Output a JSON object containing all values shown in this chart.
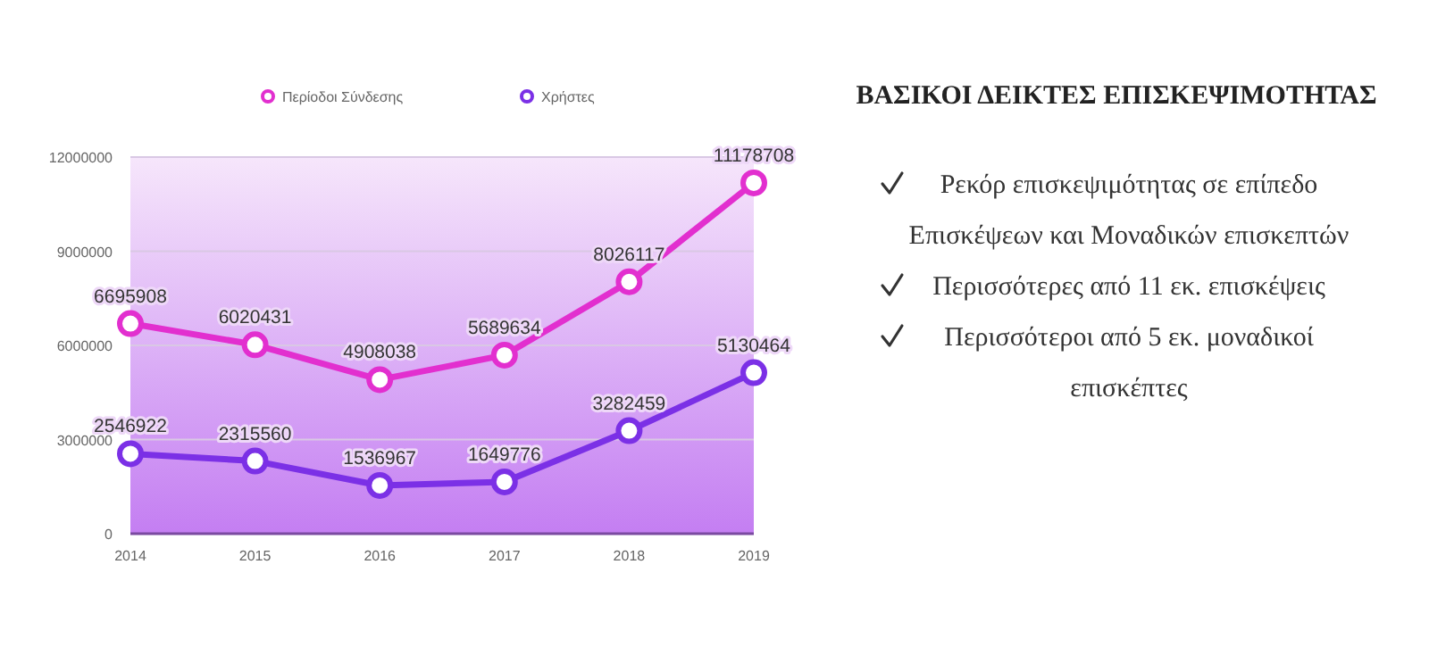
{
  "chart_data": {
    "type": "line",
    "title": "ΒΑΣΙΚΟΙ ΔΕΙΚΤΕΣ ΕΠΙΣΚΕΨΙΜΟΤΗΤΑΣ",
    "categories": [
      "2014",
      "2015",
      "2016",
      "2017",
      "2018",
      "2019"
    ],
    "series": [
      {
        "name": "Περίοδοι Σύνδεσης",
        "color": "#e22fcf",
        "values": [
          6695908,
          6020431,
          4908038,
          5689634,
          8026117,
          11178708
        ]
      },
      {
        "name": "Χρήστες",
        "color": "#7b30e6",
        "values": [
          2546922,
          2315560,
          1536967,
          1649776,
          3282459,
          5130464
        ]
      }
    ],
    "ylim": [
      0,
      12000000
    ],
    "yticks": [
      0,
      3000000,
      6000000,
      9000000,
      12000000
    ],
    "grid": "y",
    "legend": "top",
    "marker": "circle",
    "line_style": "solid",
    "data_labels": true,
    "annotations": [
      "Ρεκόρ επισκεψιμότητας σε επίπεδο Επισκέψεων και Μοναδικών επισκεπτών",
      "Περισσότερες από 11 εκ. επισκέψεις",
      "Περισσότεροι από 5 εκ. μοναδικοί επισκέπτες"
    ]
  }
}
